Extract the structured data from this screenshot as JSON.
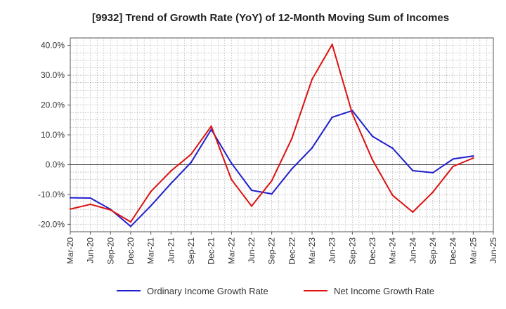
{
  "chart_data": {
    "type": "line",
    "title": "[9932]  Trend of Growth Rate (YoY) of 12-Month Moving Sum of Incomes",
    "xlabel": "",
    "ylabel": "",
    "categories": [
      "Mar-20",
      "Jun-20",
      "Sep-20",
      "Dec-20",
      "Mar-21",
      "Jun-21",
      "Sep-21",
      "Dec-21",
      "Mar-22",
      "Jun-22",
      "Sep-22",
      "Dec-22",
      "Mar-23",
      "Jun-23",
      "Sep-23",
      "Dec-23",
      "Mar-24",
      "Jun-24",
      "Sep-24",
      "Dec-24",
      "Mar-25",
      "Jun-25"
    ],
    "ylim": [
      -22.5,
      42.5
    ],
    "yticks": [
      -20,
      -10,
      0,
      10,
      20,
      30,
      40
    ],
    "ytick_labels": [
      "-20.0%",
      "-10.0%",
      "0.0%",
      "10.0%",
      "20.0%",
      "30.0%",
      "40.0%"
    ],
    "grid": true,
    "legend_position": "bottom",
    "series": [
      {
        "name": "Ordinary Income Growth Rate",
        "color": "#1f1fcc",
        "values": [
          -11.1,
          -11.2,
          -15.0,
          -20.7,
          -13.8,
          -6.3,
          0.8,
          11.8,
          0.5,
          -8.6,
          -9.8,
          -1.4,
          5.6,
          15.9,
          18.1,
          9.5,
          5.5,
          -2.0,
          -2.7,
          1.9,
          2.9,
          null
        ]
      },
      {
        "name": "Net Income Growth Rate",
        "color": "#dd1111",
        "values": [
          -14.9,
          -13.3,
          -15.2,
          -19.2,
          -9.0,
          -2.1,
          3.5,
          12.9,
          -5.0,
          -13.9,
          -5.4,
          8.8,
          28.6,
          40.3,
          17.1,
          1.6,
          -10.3,
          -15.9,
          -9.2,
          -0.6,
          2.2,
          null
        ]
      }
    ]
  }
}
